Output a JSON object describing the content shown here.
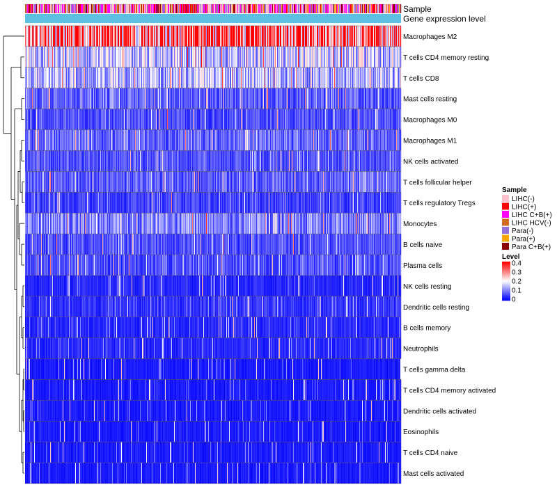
{
  "chart_data": {
    "type": "heatmap",
    "title": "",
    "annotation_tracks": [
      {
        "name": "Sample"
      },
      {
        "name": "Gene expression level",
        "color": "#5bc0e2"
      }
    ],
    "rows": [
      {
        "label": "Macrophages M2",
        "mean": 0.33
      },
      {
        "label": "T cells CD4 memory resting",
        "mean": 0.15
      },
      {
        "label": "T cells CD8",
        "mean": 0.14
      },
      {
        "label": "Mast cells resting",
        "mean": 0.07
      },
      {
        "label": "Macrophages M0",
        "mean": 0.06
      },
      {
        "label": "Macrophages M1",
        "mean": 0.08
      },
      {
        "label": "NK cells activated",
        "mean": 0.06
      },
      {
        "label": "T cells follicular helper",
        "mean": 0.07
      },
      {
        "label": "T cells regulatory  Tregs",
        "mean": 0.05
      },
      {
        "label": "Monocytes",
        "mean": 0.1
      },
      {
        "label": "B cells naive",
        "mean": 0.06
      },
      {
        "label": "Plasma cells",
        "mean": 0.06
      },
      {
        "label": "NK cells resting",
        "mean": 0.03
      },
      {
        "label": "Dendritic cells resting",
        "mean": 0.04
      },
      {
        "label": "B cells memory",
        "mean": 0.03
      },
      {
        "label": "Neutrophils",
        "mean": 0.03
      },
      {
        "label": "T cells gamma delta",
        "mean": 0.02
      },
      {
        "label": "T cells CD4 memory activated",
        "mean": 0.02
      },
      {
        "label": "Dendritic cells activated",
        "mean": 0.02
      },
      {
        "label": "Eosinophils",
        "mean": 0.02
      },
      {
        "label": "T cells CD4 naive",
        "mean": 0.02
      },
      {
        "label": "Mast cells activated",
        "mean": 0.02
      }
    ],
    "legend_sample": {
      "title": "Sample",
      "entries": [
        {
          "label": "LIHC(-)",
          "color": "#ffc0cb"
        },
        {
          "label": "LIHC(+)",
          "color": "#ff0000"
        },
        {
          "label": "LIHC C+B(+)",
          "color": "#ff00ff"
        },
        {
          "label": "LIHC HCV(-)",
          "color": "#d2691e"
        },
        {
          "label": "Para(-)",
          "color": "#9370db"
        },
        {
          "label": "Para(+)",
          "color": "#ffa500"
        },
        {
          "label": "Para C+B(+)",
          "color": "#8b0000"
        }
      ]
    },
    "legend_level": {
      "title": "Level",
      "ticks": [
        "0.4",
        "0.3",
        "0.2",
        "0.1",
        "0"
      ],
      "range": [
        0,
        0.4
      ],
      "colors": [
        "#0000ff",
        "#ffffff",
        "#ff0000"
      ]
    },
    "num_samples": 540,
    "clustering": "rows"
  }
}
